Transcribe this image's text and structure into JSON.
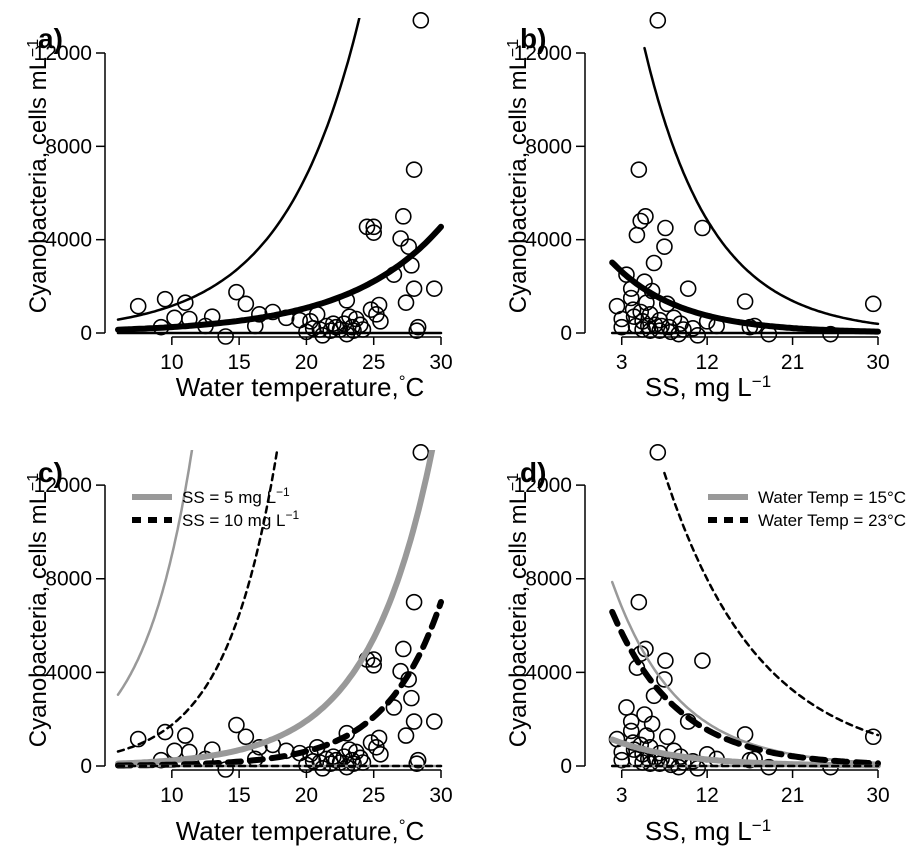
{
  "chart_data": [
    {
      "panel": "a)",
      "type": "scatter",
      "xlabel": "Water temperature,",
      "xunit": "°C",
      "ylabel": "Cyanobacteria, cells mL",
      "yunit_sup": "−1",
      "xlim": [
        6,
        30
      ],
      "ylim": [
        0,
        13500
      ],
      "xticks": [
        10,
        15,
        20,
        25,
        30
      ],
      "yticks": [
        0,
        4000,
        8000,
        12000
      ],
      "points": [
        [
          7.5,
          1150
        ],
        [
          9.2,
          250
        ],
        [
          9.5,
          1450
        ],
        [
          10.2,
          650
        ],
        [
          11,
          1300
        ],
        [
          11.3,
          600
        ],
        [
          12.5,
          300
        ],
        [
          13,
          700
        ],
        [
          14,
          -150
        ],
        [
          14.8,
          1750
        ],
        [
          15.5,
          1250
        ],
        [
          16.2,
          300
        ],
        [
          16.5,
          800
        ],
        [
          17.5,
          900
        ],
        [
          18.5,
          650
        ],
        [
          19.5,
          550
        ],
        [
          20,
          50
        ],
        [
          20.3,
          500
        ],
        [
          20.5,
          200
        ],
        [
          20.8,
          800
        ],
        [
          21,
          150
        ],
        [
          21.2,
          -100
        ],
        [
          21.5,
          300
        ],
        [
          21.8,
          100
        ],
        [
          22,
          400
        ],
        [
          22.2,
          250
        ],
        [
          22.5,
          150
        ],
        [
          22.8,
          400
        ],
        [
          23,
          -50
        ],
        [
          23,
          1400
        ],
        [
          23.2,
          700
        ],
        [
          23.4,
          250
        ],
        [
          23.5,
          100
        ],
        [
          23.7,
          600
        ],
        [
          24,
          350
        ],
        [
          24.2,
          150
        ],
        [
          24.5,
          4550
        ],
        [
          24.8,
          1000
        ],
        [
          25,
          4300
        ],
        [
          25,
          4550
        ],
        [
          25.2,
          800
        ],
        [
          25.4,
          1200
        ],
        [
          25.5,
          500
        ],
        [
          26.5,
          2500
        ],
        [
          27,
          4050
        ],
        [
          27.2,
          5000
        ],
        [
          27.4,
          1300
        ],
        [
          27.6,
          3700
        ],
        [
          27.8,
          2900
        ],
        [
          28,
          7000
        ],
        [
          28,
          1900
        ],
        [
          28.2,
          100
        ],
        [
          28.3,
          250
        ],
        [
          28.5,
          13400
        ],
        [
          29.5,
          1900
        ]
      ],
      "series": [
        {
          "style": "thin-solid",
          "color": "#000000",
          "x": [
            6,
            29.3
          ],
          "fn": "exp",
          "a": 200,
          "b": 0.176
        },
        {
          "style": "thick-solid",
          "color": "#000000",
          "x": [
            6,
            30
          ],
          "fn": "exp",
          "a": 60,
          "b": 0.1443
        },
        {
          "style": "thin-solid",
          "color": "#000000",
          "x": [
            6,
            30
          ],
          "fn": "exp",
          "a": 0.1,
          "b": 0.02
        }
      ]
    },
    {
      "panel": "b)",
      "type": "scatter",
      "xlabel": "SS, mg L",
      "xunit_sup": "−1",
      "ylabel": "Cyanobacteria, cells mL",
      "yunit_sup": "−1",
      "xlim": [
        0.5,
        30
      ],
      "ylim": [
        0,
        13500
      ],
      "xticks": [
        3,
        12,
        21,
        30
      ],
      "yticks": [
        0,
        4000,
        8000,
        12000
      ],
      "points": [
        [
          2.5,
          1150
        ],
        [
          3,
          250
        ],
        [
          3,
          600
        ],
        [
          3.5,
          2500
        ],
        [
          4,
          1900
        ],
        [
          4,
          1500
        ],
        [
          4.2,
          1000
        ],
        [
          4.3,
          700
        ],
        [
          4.5,
          300
        ],
        [
          4.6,
          4200
        ],
        [
          4.8,
          7000
        ],
        [
          5,
          4800
        ],
        [
          5,
          900
        ],
        [
          5.2,
          150
        ],
        [
          5.2,
          500
        ],
        [
          5.4,
          2200
        ],
        [
          5.5,
          5000
        ],
        [
          5.6,
          1300
        ],
        [
          5.8,
          300
        ],
        [
          6,
          800
        ],
        [
          6,
          100
        ],
        [
          6.2,
          1800
        ],
        [
          6.4,
          3000
        ],
        [
          6.5,
          350
        ],
        [
          6.8,
          13400
        ],
        [
          7,
          550
        ],
        [
          7,
          100
        ],
        [
          7.2,
          300
        ],
        [
          7.5,
          3700
        ],
        [
          7.6,
          4500
        ],
        [
          7.8,
          1250
        ],
        [
          8,
          250
        ],
        [
          8.2,
          50
        ],
        [
          8.5,
          650
        ],
        [
          9,
          -50
        ],
        [
          9.2,
          400
        ],
        [
          9.5,
          150
        ],
        [
          10,
          1900
        ],
        [
          10.5,
          200
        ],
        [
          11,
          -100
        ],
        [
          11.5,
          4500
        ],
        [
          12,
          500
        ],
        [
          13,
          300
        ],
        [
          16,
          1350
        ],
        [
          16.5,
          250
        ],
        [
          17,
          300
        ],
        [
          18.5,
          -50
        ],
        [
          25,
          -50
        ],
        [
          29.5,
          1250
        ]
      ],
      "series": [
        {
          "style": "thin-solid",
          "color": "#000000",
          "x": [
            5.4,
            30
          ],
          "fn": "exp",
          "a": 26000,
          "b": -0.14
        },
        {
          "style": "thick-solid",
          "color": "#000000",
          "x": [
            2,
            30
          ],
          "fn": "exp",
          "a": 4000,
          "b": -0.14
        },
        {
          "style": "thin-solid",
          "color": "#000000",
          "x": [
            2,
            30
          ],
          "fn": "exp",
          "a": 0.1,
          "b": 0.0
        }
      ]
    },
    {
      "panel": "c)",
      "type": "scatter",
      "xlabel": "Water temperature,",
      "xunit": "°C",
      "ylabel": "Cyanobacteria, cells mL",
      "yunit_sup": "−1",
      "xlim": [
        6,
        30
      ],
      "ylim": [
        0,
        13500
      ],
      "xticks": [
        10,
        15,
        20,
        25,
        30
      ],
      "yticks": [
        0,
        4000,
        8000,
        12000
      ],
      "legend": [
        {
          "label": "SS = 5 mg L",
          "sup": "−1",
          "style": "thick-solid",
          "color": "#999999"
        },
        {
          "label": "SS = 10 mg L",
          "sup": "−1",
          "style": "thick-dashed",
          "color": "#000000"
        }
      ],
      "points": [
        [
          7.5,
          1150
        ],
        [
          9.2,
          250
        ],
        [
          9.5,
          1450
        ],
        [
          10.2,
          650
        ],
        [
          11,
          1300
        ],
        [
          11.3,
          600
        ],
        [
          12.5,
          300
        ],
        [
          13,
          700
        ],
        [
          14,
          -150
        ],
        [
          14.8,
          1750
        ],
        [
          15.5,
          1250
        ],
        [
          16.2,
          300
        ],
        [
          16.5,
          800
        ],
        [
          17.5,
          900
        ],
        [
          18.5,
          650
        ],
        [
          19.5,
          550
        ],
        [
          20,
          50
        ],
        [
          20.3,
          500
        ],
        [
          20.5,
          200
        ],
        [
          20.8,
          800
        ],
        [
          21,
          150
        ],
        [
          21.2,
          -100
        ],
        [
          21.5,
          300
        ],
        [
          21.8,
          100
        ],
        [
          22,
          400
        ],
        [
          22.2,
          250
        ],
        [
          22.5,
          150
        ],
        [
          22.8,
          400
        ],
        [
          23,
          -50
        ],
        [
          23,
          1400
        ],
        [
          23.2,
          700
        ],
        [
          23.4,
          250
        ],
        [
          23.5,
          100
        ],
        [
          23.7,
          600
        ],
        [
          24,
          350
        ],
        [
          24.2,
          150
        ],
        [
          24.5,
          4550
        ],
        [
          24.8,
          1000
        ],
        [
          25,
          4300
        ],
        [
          25,
          4550
        ],
        [
          25.2,
          800
        ],
        [
          25.4,
          1200
        ],
        [
          25.5,
          500
        ],
        [
          26.5,
          2500
        ],
        [
          27,
          4050
        ],
        [
          27.2,
          5000
        ],
        [
          27.4,
          1300
        ],
        [
          27.6,
          3700
        ],
        [
          27.8,
          2900
        ],
        [
          28,
          7000
        ],
        [
          28,
          1900
        ],
        [
          28.2,
          100
        ],
        [
          28.3,
          250
        ],
        [
          28.5,
          13400
        ],
        [
          29.5,
          1900
        ]
      ],
      "series": [
        {
          "style": "thin-solid",
          "color": "#999999",
          "x": [
            6,
            17.3
          ],
          "fn": "exp",
          "a": 600,
          "b": 0.2708
        },
        {
          "style": "thin-dashed",
          "color": "#000000",
          "x": [
            6,
            24.2
          ],
          "fn": "exp",
          "a": 130,
          "b": 0.2604
        },
        {
          "style": "thick-solid",
          "color": "#999999",
          "x": [
            6,
            29.5
          ],
          "fn": "exp",
          "a": 30,
          "b": 0.2082
        },
        {
          "style": "thick-dashed",
          "color": "#000000",
          "x": [
            6,
            30
          ],
          "fn": "exp",
          "a": 5,
          "b": 0.2415
        },
        {
          "style": "thin-solid",
          "color": "#999999",
          "x": [
            6,
            30
          ],
          "fn": "exp",
          "a": 0.1,
          "b": 0.02
        },
        {
          "style": "thin-dashed",
          "color": "#000000",
          "x": [
            6,
            30
          ],
          "fn": "exp",
          "a": 0.1,
          "b": 0.02
        }
      ]
    },
    {
      "panel": "d)",
      "type": "scatter",
      "xlabel": "SS, mg L",
      "xunit_sup": "−1",
      "ylabel": "Cyanobacteria, cells mL",
      "yunit_sup": "−1",
      "xlim": [
        0.5,
        30
      ],
      "ylim": [
        0,
        13500
      ],
      "xticks": [
        3,
        12,
        21,
        30
      ],
      "yticks": [
        0,
        4000,
        8000,
        12000
      ],
      "legend": [
        {
          "label": "Water Temp = 15°C",
          "style": "thick-solid",
          "color": "#999999"
        },
        {
          "label": "Water Temp = 23°C",
          "style": "thick-dashed",
          "color": "#000000"
        }
      ],
      "points": [
        [
          2.5,
          1150
        ],
        [
          3,
          250
        ],
        [
          3,
          600
        ],
        [
          3.5,
          2500
        ],
        [
          4,
          1900
        ],
        [
          4,
          1500
        ],
        [
          4.2,
          1000
        ],
        [
          4.3,
          700
        ],
        [
          4.5,
          300
        ],
        [
          4.6,
          4200
        ],
        [
          4.8,
          7000
        ],
        [
          5,
          4800
        ],
        [
          5,
          900
        ],
        [
          5.2,
          150
        ],
        [
          5.2,
          500
        ],
        [
          5.4,
          2200
        ],
        [
          5.5,
          5000
        ],
        [
          5.6,
          1300
        ],
        [
          5.8,
          300
        ],
        [
          6,
          800
        ],
        [
          6,
          100
        ],
        [
          6.2,
          1800
        ],
        [
          6.4,
          3000
        ],
        [
          6.5,
          350
        ],
        [
          6.8,
          13400
        ],
        [
          7,
          550
        ],
        [
          7,
          100
        ],
        [
          7.2,
          300
        ],
        [
          7.5,
          3700
        ],
        [
          7.6,
          4500
        ],
        [
          7.8,
          1250
        ],
        [
          8,
          250
        ],
        [
          8.2,
          50
        ],
        [
          8.5,
          650
        ],
        [
          9,
          -50
        ],
        [
          9.2,
          400
        ],
        [
          9.5,
          150
        ],
        [
          10,
          1900
        ],
        [
          10.5,
          200
        ],
        [
          11,
          -100
        ],
        [
          11.5,
          4500
        ],
        [
          12,
          500
        ],
        [
          13,
          300
        ],
        [
          16,
          1350
        ],
        [
          16.5,
          250
        ],
        [
          17,
          300
        ],
        [
          18.5,
          -50
        ],
        [
          25,
          -50
        ],
        [
          29.5,
          1250
        ]
      ],
      "series": [
        {
          "style": "thin-solid",
          "color": "#999999",
          "x": [
            2,
            30
          ],
          "fn": "exp",
          "a": 10500,
          "b": -0.145
        },
        {
          "style": "thin-dashed",
          "color": "#000000",
          "x": [
            7.5,
            30
          ],
          "fn": "exp",
          "a": 26500,
          "b": -0.1
        },
        {
          "style": "thick-solid",
          "color": "#999999",
          "x": [
            2,
            30
          ],
          "fn": "exp",
          "a": 1500,
          "b": -0.14
        },
        {
          "style": "thick-dashed",
          "color": "#000000",
          "x": [
            2,
            30
          ],
          "fn": "exp",
          "a": 8800,
          "b": -0.145
        },
        {
          "style": "thin-solid",
          "color": "#999999",
          "x": [
            2,
            30
          ],
          "fn": "exp",
          "a": 0.1,
          "b": 0.0
        },
        {
          "style": "thin-dashed",
          "color": "#000000",
          "x": [
            2,
            30
          ],
          "fn": "exp",
          "a": 0.1,
          "b": 0.0
        }
      ]
    }
  ]
}
